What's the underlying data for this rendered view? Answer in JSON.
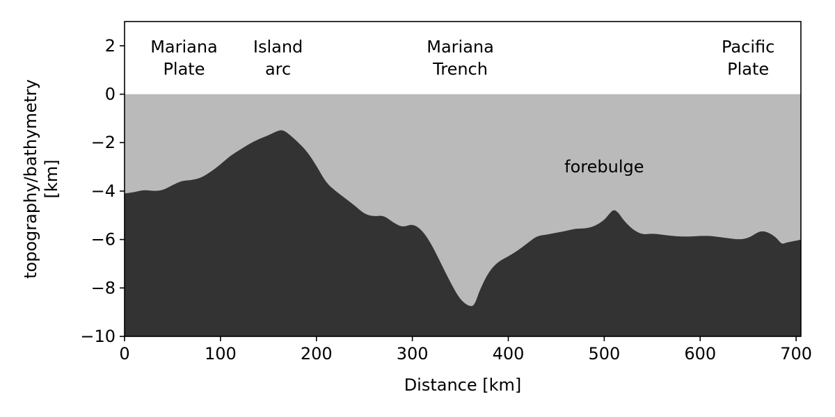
{
  "chart_data": {
    "type": "area",
    "xlabel": "Distance [km]",
    "ylabel": "topography/bathymetry\n[km]",
    "xlim": [
      0,
      705
    ],
    "ylim": [
      -10,
      3
    ],
    "xticks": [
      0,
      100,
      200,
      300,
      400,
      500,
      600,
      700
    ],
    "yticks": [
      2,
      0,
      -2,
      -4,
      -6,
      -8,
      -10
    ],
    "grid": false,
    "colors": {
      "water": "#bababa",
      "earth": "#333333",
      "background": "#ffffff"
    },
    "series": [
      {
        "x": [
          0,
          10,
          20,
          30,
          40,
          50,
          60,
          70,
          80,
          90,
          100,
          110,
          120,
          130,
          140,
          150,
          160,
          165,
          170,
          180,
          190,
          200,
          210,
          220,
          230,
          240,
          250,
          260,
          270,
          280,
          290,
          300,
          310,
          320,
          330,
          340,
          350,
          360,
          365,
          370,
          380,
          390,
          400,
          410,
          420,
          430,
          440,
          450,
          460,
          470,
          480,
          490,
          500,
          505,
          510,
          515,
          520,
          530,
          540,
          550,
          560,
          570,
          580,
          590,
          600,
          610,
          620,
          630,
          640,
          650,
          660,
          665,
          670,
          675,
          680,
          685,
          690,
          700,
          705
        ],
        "values": [
          -4.1,
          -4.05,
          -3.95,
          -4.0,
          -3.97,
          -3.75,
          -3.57,
          -3.55,
          -3.45,
          -3.2,
          -2.9,
          -2.55,
          -2.3,
          -2.05,
          -1.85,
          -1.7,
          -1.5,
          -1.48,
          -1.6,
          -1.95,
          -2.35,
          -2.95,
          -3.65,
          -4.0,
          -4.3,
          -4.6,
          -4.95,
          -5.05,
          -5.0,
          -5.3,
          -5.5,
          -5.35,
          -5.6,
          -6.2,
          -7.0,
          -7.8,
          -8.5,
          -8.78,
          -8.7,
          -8.1,
          -7.3,
          -6.9,
          -6.7,
          -6.45,
          -6.15,
          -5.85,
          -5.8,
          -5.72,
          -5.65,
          -5.55,
          -5.55,
          -5.45,
          -5.2,
          -4.95,
          -4.75,
          -4.9,
          -5.2,
          -5.6,
          -5.8,
          -5.75,
          -5.8,
          -5.85,
          -5.88,
          -5.88,
          -5.85,
          -5.85,
          -5.9,
          -5.95,
          -6.0,
          -5.95,
          -5.7,
          -5.65,
          -5.7,
          -5.8,
          -5.95,
          -6.2,
          -6.12,
          -6.05,
          -6.0
        ]
      }
    ],
    "annotations": [
      {
        "text": "Mariana\nPlate",
        "x": 62,
        "y": 1.5
      },
      {
        "text": "Island\narc",
        "x": 160,
        "y": 1.5
      },
      {
        "text": "Mariana\nTrench",
        "x": 350,
        "y": 1.5
      },
      {
        "text": "forebulge",
        "x": 500,
        "y": -3.0
      },
      {
        "text": "Pacific\nPlate",
        "x": 650,
        "y": 1.5
      }
    ]
  }
}
